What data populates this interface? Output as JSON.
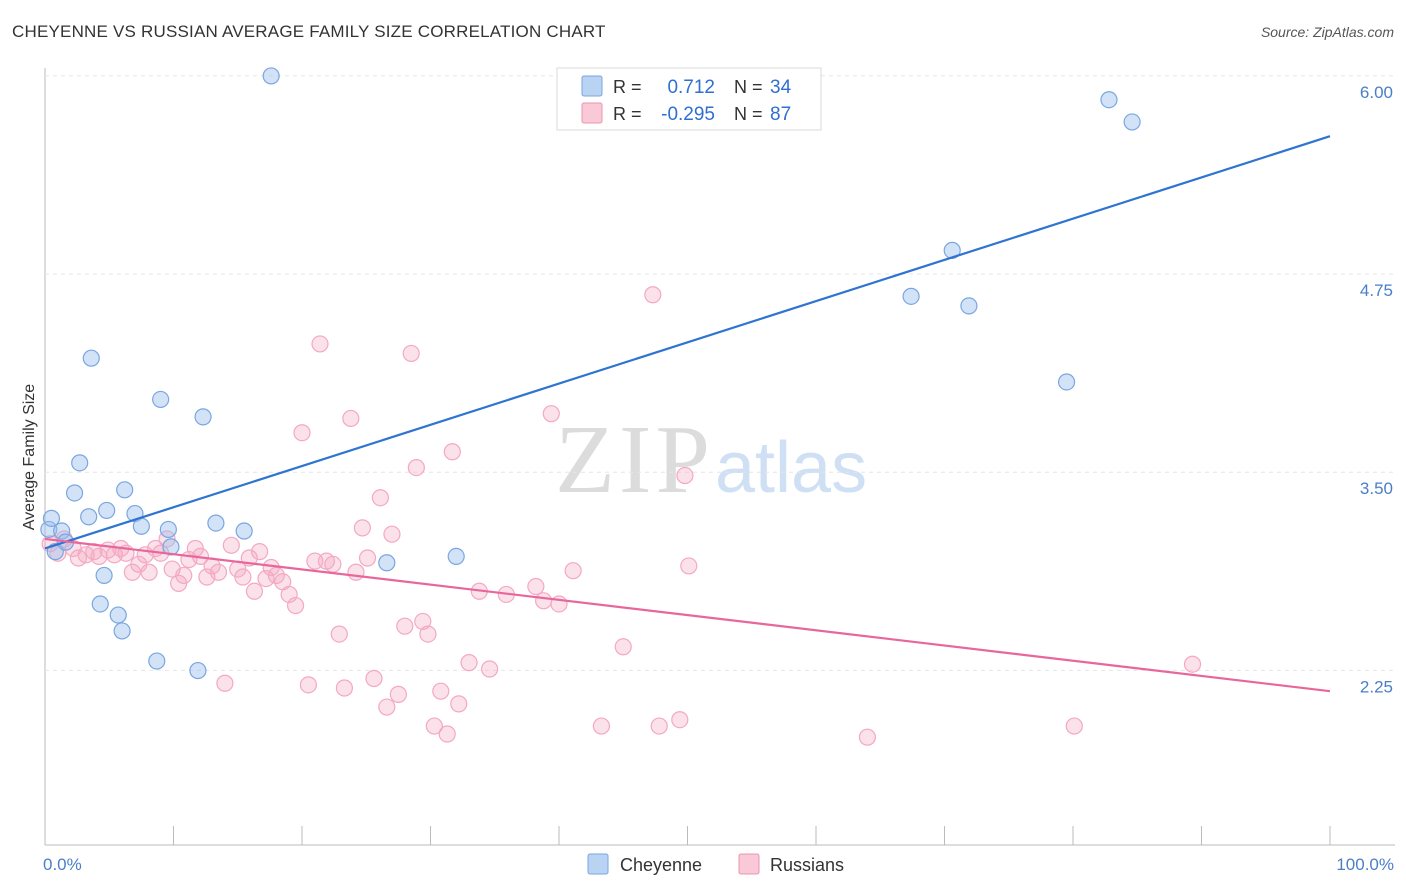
{
  "header": {
    "title": "CHEYENNE VS RUSSIAN AVERAGE FAMILY SIZE CORRELATION CHART",
    "source": "Source: ZipAtlas.com"
  },
  "watermark": {
    "zip": "ZIP",
    "atlas": "atlas"
  },
  "legend": {
    "rows": [
      {
        "r_label": "R =",
        "r_value": "0.712",
        "n_label": "N =",
        "n_value": "34"
      },
      {
        "r_label": "R =",
        "r_value": "-0.295",
        "n_label": "N =",
        "n_value": "87"
      }
    ]
  },
  "bottom_legend": {
    "items": [
      "Cheyenne",
      "Russians"
    ]
  },
  "chart_data": {
    "type": "scatter",
    "title": "CHEYENNE VS RUSSIAN AVERAGE FAMILY SIZE CORRELATION CHART",
    "ylabel": "Average Family Size",
    "xlabel": "",
    "xlim": [
      0,
      100
    ],
    "ylim": [
      1.25,
      6.15
    ],
    "x_tick_labels": [
      "0.0%",
      "100.0%"
    ],
    "y_ticks": [
      2.25,
      3.5,
      4.75,
      6.0
    ],
    "y_tick_labels": [
      "2.25",
      "3.50",
      "4.75",
      "6.00"
    ],
    "grid": true,
    "colors": {
      "cheyenne": "#9bbfee",
      "cheyenne_line": "#2f74d0",
      "russians": "#f4a8c2",
      "russians_line": "#e8679a"
    },
    "series": [
      {
        "name": "Cheyenne",
        "trend": {
          "x": [
            0,
            100
          ],
          "y": [
            3.12,
            5.72
          ]
        },
        "points": [
          [
            0.3,
            3.24
          ],
          [
            0.5,
            3.31
          ],
          [
            0.8,
            3.1
          ],
          [
            1.3,
            3.23
          ],
          [
            1.6,
            3.16
          ],
          [
            2.3,
            3.47
          ],
          [
            2.7,
            3.66
          ],
          [
            3.4,
            3.32
          ],
          [
            3.6,
            4.32
          ],
          [
            4.3,
            2.77
          ],
          [
            4.6,
            2.95
          ],
          [
            4.8,
            3.36
          ],
          [
            5.7,
            2.7
          ],
          [
            6.0,
            2.6
          ],
          [
            6.2,
            3.49
          ],
          [
            7.0,
            3.34
          ],
          [
            7.5,
            3.26
          ],
          [
            8.7,
            2.41
          ],
          [
            9.0,
            4.06
          ],
          [
            9.6,
            3.24
          ],
          [
            9.8,
            3.13
          ],
          [
            11.9,
            2.35
          ],
          [
            12.3,
            3.95
          ],
          [
            13.3,
            3.28
          ],
          [
            15.5,
            3.23
          ],
          [
            17.6,
            6.1
          ],
          [
            26.6,
            3.03
          ],
          [
            32.0,
            3.07
          ],
          [
            67.4,
            4.71
          ],
          [
            70.6,
            5.0
          ],
          [
            71.9,
            4.65
          ],
          [
            79.5,
            4.17
          ],
          [
            82.8,
            5.95
          ],
          [
            84.6,
            5.81
          ]
        ]
      },
      {
        "name": "Russians",
        "trend": {
          "x": [
            0,
            100
          ],
          "y": [
            3.18,
            2.22
          ]
        },
        "points": [
          [
            0.4,
            3.15
          ],
          [
            1.0,
            3.09
          ],
          [
            1.5,
            3.18
          ],
          [
            2.2,
            3.12
          ],
          [
            2.6,
            3.06
          ],
          [
            3.2,
            3.08
          ],
          [
            3.8,
            3.1
          ],
          [
            4.2,
            3.07
          ],
          [
            4.9,
            3.11
          ],
          [
            5.4,
            3.08
          ],
          [
            5.9,
            3.12
          ],
          [
            6.3,
            3.09
          ],
          [
            6.8,
            2.97
          ],
          [
            7.3,
            3.02
          ],
          [
            7.8,
            3.08
          ],
          [
            8.1,
            2.97
          ],
          [
            8.6,
            3.12
          ],
          [
            9.0,
            3.09
          ],
          [
            9.5,
            3.18
          ],
          [
            9.9,
            2.99
          ],
          [
            10.4,
            2.9
          ],
          [
            10.8,
            2.95
          ],
          [
            11.2,
            3.05
          ],
          [
            11.7,
            3.12
          ],
          [
            12.1,
            3.07
          ],
          [
            12.6,
            2.94
          ],
          [
            13.0,
            3.01
          ],
          [
            13.5,
            2.97
          ],
          [
            14.0,
            2.27
          ],
          [
            14.5,
            3.14
          ],
          [
            15.0,
            2.99
          ],
          [
            15.4,
            2.94
          ],
          [
            15.9,
            3.06
          ],
          [
            16.3,
            2.85
          ],
          [
            16.7,
            3.1
          ],
          [
            17.2,
            2.93
          ],
          [
            17.6,
            3.0
          ],
          [
            18.0,
            2.95
          ],
          [
            18.5,
            2.91
          ],
          [
            19.0,
            2.83
          ],
          [
            19.5,
            2.76
          ],
          [
            20.0,
            3.85
          ],
          [
            20.5,
            2.26
          ],
          [
            21.0,
            3.04
          ],
          [
            21.4,
            4.41
          ],
          [
            21.9,
            3.04
          ],
          [
            22.4,
            3.02
          ],
          [
            22.9,
            2.58
          ],
          [
            23.3,
            2.24
          ],
          [
            23.8,
            3.94
          ],
          [
            24.2,
            2.97
          ],
          [
            24.7,
            3.25
          ],
          [
            25.1,
            3.06
          ],
          [
            25.6,
            2.3
          ],
          [
            26.1,
            3.44
          ],
          [
            26.6,
            2.12
          ],
          [
            27.0,
            3.21
          ],
          [
            27.5,
            2.2
          ],
          [
            28.0,
            2.63
          ],
          [
            28.5,
            4.35
          ],
          [
            28.9,
            3.63
          ],
          [
            29.4,
            2.66
          ],
          [
            29.8,
            2.58
          ],
          [
            30.3,
            2.0
          ],
          [
            30.8,
            2.22
          ],
          [
            31.3,
            1.95
          ],
          [
            31.7,
            3.73
          ],
          [
            32.2,
            2.14
          ],
          [
            33.0,
            2.4
          ],
          [
            33.8,
            2.85
          ],
          [
            34.6,
            2.36
          ],
          [
            35.9,
            2.83
          ],
          [
            38.2,
            2.88
          ],
          [
            38.8,
            2.79
          ],
          [
            39.4,
            3.97
          ],
          [
            40.0,
            2.77
          ],
          [
            41.1,
            2.98
          ],
          [
            43.3,
            2.0
          ],
          [
            45.0,
            2.5
          ],
          [
            47.3,
            4.72
          ],
          [
            47.8,
            2.0
          ],
          [
            49.4,
            2.04
          ],
          [
            49.8,
            3.58
          ],
          [
            50.1,
            3.01
          ],
          [
            64.0,
            1.93
          ],
          [
            80.1,
            2.0
          ],
          [
            89.3,
            2.39
          ]
        ]
      }
    ]
  }
}
